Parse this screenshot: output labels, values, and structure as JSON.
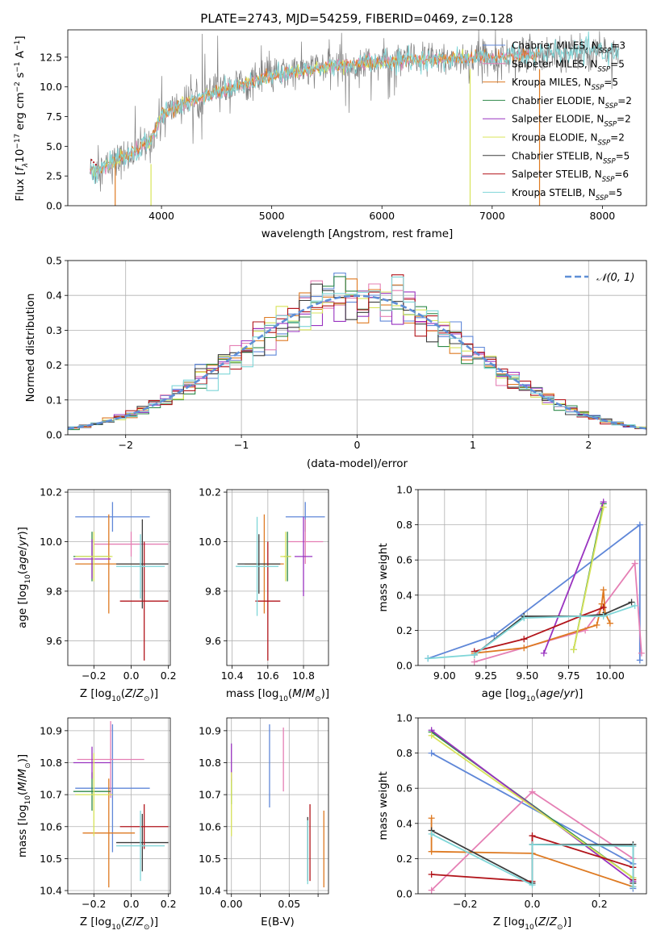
{
  "colors": {
    "Chabrier MILES": "#5f87d8",
    "Salpeter MILES": "#e57fb4",
    "Kroupa MILES": "#de7a22",
    "Chabrier ELODIE": "#2f8a4a",
    "Salpeter ELODIE": "#9933c0",
    "Kroupa ELODIE": "#d8e45a",
    "Chabrier STELIB": "#3c3c3c",
    "Salpeter STELIB": "#b2151b",
    "Kroupa STELIB": "#7fd6d8",
    "normal": "#5f8fd6",
    "spectrum_data": "#808080"
  },
  "models": [
    "Chabrier MILES",
    "Salpeter MILES",
    "Kroupa MILES",
    "Chabrier ELODIE",
    "Salpeter ELODIE",
    "Kroupa ELODIE",
    "Chabrier STELIB",
    "Salpeter STELIB",
    "Kroupa STELIB"
  ],
  "chart_data": [
    {
      "id": "spectrum",
      "type": "line",
      "title": "PLATE=2743, MJD=54259, FIBERID=0469, z=0.128",
      "xlabel": "wavelength [Angstrom, rest frame]",
      "ylabel": "Flux [fλ10⁻¹⁷ erg cm⁻² s⁻¹ A⁻¹]",
      "xlim": [
        3150,
        8400
      ],
      "ylim": [
        0,
        14.8
      ],
      "xticks": [
        4000,
        5000,
        6000,
        7000,
        8000
      ],
      "yticks": [
        0.0,
        2.5,
        5.0,
        7.5,
        10.0,
        12.5
      ],
      "ytick_labels": [
        "0.0",
        "2.5",
        "5.0",
        "7.5",
        "10.0",
        "12.5"
      ],
      "continuum": {
        "x": [
          3350,
          3500,
          3700,
          3900,
          4000,
          4200,
          4500,
          4800,
          5000,
          5300,
          5600,
          6000,
          6500,
          7000,
          7500,
          8000,
          8150
        ],
        "y": [
          2.9,
          3.3,
          4.2,
          5.4,
          7.6,
          8.6,
          9.6,
          10.4,
          10.9,
          11.4,
          11.8,
          12.1,
          12.3,
          12.5,
          12.8,
          13.0,
          12.9
        ]
      },
      "legend": [
        {
          "label": "Chabrier MILES, N",
          "sub": "SSP",
          "suffix": "=3"
        },
        {
          "label": "Salpeter MILES, N",
          "sub": "SSP",
          "suffix": "=5"
        },
        {
          "label": "Kroupa MILES, N",
          "sub": "SSP",
          "suffix": "=5"
        },
        {
          "label": "Chabrier ELODIE, N",
          "sub": "SSP",
          "suffix": "=2"
        },
        {
          "label": "Salpeter ELODIE, N",
          "sub": "SSP",
          "suffix": "=2"
        },
        {
          "label": "Kroupa ELODIE, N",
          "sub": "SSP",
          "suffix": "=2"
        },
        {
          "label": "Chabrier STELIB, N",
          "sub": "SSP",
          "suffix": "=5"
        },
        {
          "label": "Salpeter STELIB, N",
          "sub": "SSP",
          "suffix": "=6"
        },
        {
          "label": "Kroupa STELIB, N",
          "sub": "SSP",
          "suffix": "=5"
        }
      ]
    },
    {
      "id": "residuals",
      "type": "histogram",
      "xlabel": "(data-model)/error",
      "ylabel": "Normed distribution",
      "xlim": [
        -2.5,
        2.5
      ],
      "ylim": [
        0,
        0.5
      ],
      "xticks": [
        -2,
        -1,
        0,
        1,
        2
      ],
      "xtick_labels": [
        "−2",
        "−1",
        "0",
        "1",
        "2"
      ],
      "yticks": [
        0.0,
        0.1,
        0.2,
        0.3,
        0.4,
        0.5
      ],
      "ytick_labels": [
        "0.0",
        "0.1",
        "0.2",
        "0.3",
        "0.4",
        "0.5"
      ],
      "bin_edges_start": -2.5,
      "bin_width": 0.1,
      "legend": "𝒩(0, 1)"
    },
    {
      "id": "age_vs_Z",
      "type": "scatter",
      "xlabel": "Z [log10(Z/Z⊙)]",
      "ylabel": "age  [log10(age/yr)]",
      "xlim": [
        -0.34,
        0.21
      ],
      "ylim": [
        9.5,
        10.21
      ],
      "xticks": [
        -0.2,
        0.0,
        0.2
      ],
      "xtick_labels": [
        "−0.2",
        "0.0",
        "0.2"
      ],
      "yticks": [
        9.6,
        9.8,
        10.0,
        10.2
      ],
      "ytick_labels": [
        "9.6",
        "9.8",
        "10.0",
        "10.2"
      ],
      "points": [
        {
          "model": "Chabrier MILES",
          "x": -0.1,
          "xerr": 0.2,
          "y": 10.1,
          "yerr": 0.06
        },
        {
          "model": "Salpeter MILES",
          "x": 0.0,
          "xerr": 0.2,
          "y": 9.99,
          "yerr": 0.05
        },
        {
          "model": "Kroupa MILES",
          "x": -0.12,
          "xerr": 0.18,
          "y": 9.91,
          "yerr": 0.2
        },
        {
          "model": "Chabrier ELODIE",
          "x": -0.21,
          "xerr": 0.1,
          "y": 9.94,
          "yerr": 0.1
        },
        {
          "model": "Salpeter ELODIE",
          "x": -0.21,
          "xerr": 0.1,
          "y": 9.93,
          "yerr": 0.08
        },
        {
          "model": "Kroupa ELODIE",
          "x": -0.2,
          "xerr": 0.1,
          "y": 9.94,
          "yerr": 0.1
        },
        {
          "model": "Chabrier STELIB",
          "x": 0.06,
          "xerr": 0.14,
          "y": 9.91,
          "yerr": 0.18
        },
        {
          "model": "Salpeter STELIB",
          "x": 0.07,
          "xerr": 0.13,
          "y": 9.76,
          "yerr": 0.24
        },
        {
          "model": "Kroupa STELIB",
          "x": 0.05,
          "xerr": 0.13,
          "y": 9.9,
          "yerr": 0.13
        }
      ]
    },
    {
      "id": "age_vs_mass",
      "type": "scatter",
      "xlabel": "mass [log10(M/M⊙)]",
      "ylabel": "",
      "xlim": [
        10.37,
        10.94
      ],
      "ylim": [
        9.5,
        10.21
      ],
      "xticks": [
        10.4,
        10.6,
        10.8
      ],
      "xtick_labels": [
        "10.4",
        "10.6",
        "10.8"
      ],
      "yticks": [
        9.6,
        9.8,
        10.0,
        10.2
      ],
      "ytick_labels": [
        "9.6",
        "9.8",
        "10.0",
        "10.2"
      ],
      "points": [
        {
          "model": "Chabrier MILES",
          "x": 10.81,
          "xerr": 0.11,
          "y": 10.1,
          "yerr": 0.06
        },
        {
          "model": "Salpeter MILES",
          "x": 10.81,
          "xerr": 0.1,
          "y": 10.0,
          "yerr": 0.09
        },
        {
          "model": "Kroupa MILES",
          "x": 10.58,
          "xerr": 0.11,
          "y": 9.91,
          "yerr": 0.2
        },
        {
          "model": "Chabrier ELODIE",
          "x": 10.71,
          "xerr": 0.02,
          "y": 9.94,
          "yerr": 0.1
        },
        {
          "model": "Salpeter ELODIE",
          "x": 10.8,
          "xerr": 0.05,
          "y": 9.94,
          "yerr": 0.16
        },
        {
          "model": "Kroupa ELODIE",
          "x": 10.7,
          "xerr": 0.03,
          "y": 9.94,
          "yerr": 0.1
        },
        {
          "model": "Chabrier STELIB",
          "x": 10.55,
          "xerr": 0.12,
          "y": 9.91,
          "yerr": 0.12
        },
        {
          "model": "Salpeter STELIB",
          "x": 10.6,
          "xerr": 0.07,
          "y": 9.76,
          "yerr": 0.24
        },
        {
          "model": "Kroupa STELIB",
          "x": 10.54,
          "xerr": 0.12,
          "y": 9.9,
          "yerr": 0.2
        }
      ]
    },
    {
      "id": "weight_vs_age",
      "type": "line",
      "xlabel": "age  [log10(age/yr)]",
      "ylabel": "mass weight",
      "xlim": [
        8.84,
        10.22
      ],
      "ylim": [
        0,
        1.0
      ],
      "xticks": [
        9.0,
        9.25,
        9.5,
        9.75,
        10.0
      ],
      "xtick_labels": [
        "9.00",
        "9.25",
        "9.50",
        "9.75",
        "10.00"
      ],
      "yticks": [
        0.0,
        0.2,
        0.4,
        0.6,
        0.8,
        1.0
      ],
      "ytick_labels": [
        "0.0",
        "0.2",
        "0.4",
        "0.6",
        "0.8",
        "1.0"
      ],
      "series": [
        {
          "model": "Chabrier MILES",
          "x": [
            8.9,
            9.3,
            10.18,
            10.18
          ],
          "y": [
            0.04,
            0.17,
            0.8,
            0.03
          ]
        },
        {
          "model": "Salpeter MILES",
          "x": [
            9.18,
            9.85,
            10.15,
            10.19
          ],
          "y": [
            0.02,
            0.2,
            0.58,
            0.07
          ]
        },
        {
          "model": "Kroupa MILES",
          "x": [
            9.18,
            9.48,
            9.92,
            9.95,
            9.96,
            9.97,
            10.0
          ],
          "y": [
            0.07,
            0.1,
            0.23,
            0.35,
            0.43,
            0.3,
            0.24
          ]
        },
        {
          "model": "Chabrier ELODIE",
          "x": [
            9.78,
            9.96
          ],
          "y": [
            0.09,
            0.92
          ]
        },
        {
          "model": "Salpeter ELODIE",
          "x": [
            9.6,
            9.96
          ],
          "y": [
            0.07,
            0.93
          ]
        },
        {
          "model": "Kroupa ELODIE",
          "x": [
            9.78,
            9.96
          ],
          "y": [
            0.09,
            0.9
          ]
        },
        {
          "model": "Chabrier STELIB",
          "x": [
            9.18,
            9.48,
            9.82,
            9.96,
            10.13
          ],
          "y": [
            0.06,
            0.28,
            0.28,
            0.29,
            0.36
          ]
        },
        {
          "model": "Salpeter STELIB",
          "x": [
            9.18,
            9.48,
            9.82,
            9.96
          ],
          "y": [
            0.08,
            0.15,
            0.28,
            0.33
          ]
        },
        {
          "model": "Kroupa STELIB",
          "x": [
            8.9,
            9.18,
            9.48,
            9.82,
            9.96,
            10.15
          ],
          "y": [
            0.04,
            0.06,
            0.27,
            0.28,
            0.28,
            0.34
          ]
        }
      ]
    },
    {
      "id": "mass_vs_Z",
      "type": "scatter",
      "xlabel": "Z [log10(Z/Z⊙)]",
      "ylabel": "mass [log10(M/M⊙)]",
      "xlim": [
        -0.34,
        0.21
      ],
      "ylim": [
        10.39,
        10.94
      ],
      "xticks": [
        -0.2,
        0.0,
        0.2
      ],
      "xtick_labels": [
        "−0.2",
        "0.0",
        "0.2"
      ],
      "yticks": [
        10.4,
        10.5,
        10.6,
        10.7,
        10.8,
        10.9
      ],
      "ytick_labels": [
        "10.4",
        "10.5",
        "10.6",
        "10.7",
        "10.8",
        "10.9"
      ],
      "points": [
        {
          "model": "Chabrier MILES",
          "x": -0.1,
          "xerr": 0.2,
          "y": 10.72,
          "yerr": 0.2
        },
        {
          "model": "Salpeter MILES",
          "x": -0.11,
          "xerr": 0.18,
          "y": 10.81,
          "yerr": 0.12
        },
        {
          "model": "Kroupa MILES",
          "x": -0.12,
          "xerr": 0.14,
          "y": 10.58,
          "yerr": 0.17
        },
        {
          "model": "Chabrier ELODIE",
          "x": -0.21,
          "xerr": 0.1,
          "y": 10.71,
          "yerr": 0.06
        },
        {
          "model": "Salpeter ELODIE",
          "x": -0.21,
          "xerr": 0.1,
          "y": 10.8,
          "yerr": 0.05
        },
        {
          "model": "Kroupa ELODIE",
          "x": -0.2,
          "xerr": 0.1,
          "y": 10.7,
          "yerr": 0.13
        },
        {
          "model": "Chabrier STELIB",
          "x": 0.06,
          "xerr": 0.14,
          "y": 10.55,
          "yerr": 0.09
        },
        {
          "model": "Salpeter STELIB",
          "x": 0.07,
          "xerr": 0.13,
          "y": 10.6,
          "yerr": 0.07
        },
        {
          "model": "Kroupa STELIB",
          "x": 0.05,
          "xerr": 0.13,
          "y": 10.54,
          "yerr": 0.11
        }
      ]
    },
    {
      "id": "mass_vs_ebv",
      "type": "scatter",
      "xlabel": "E(B-V)",
      "ylabel": "",
      "xlim": [
        -0.004,
        0.084
      ],
      "ylim": [
        10.39,
        10.94
      ],
      "xticks": [
        0.0,
        0.025,
        0.05,
        0.075
      ],
      "xtick_labels": [
        "0.00",
        "",
        "0.05",
        ""
      ],
      "yticks": [
        10.4,
        10.5,
        10.6,
        10.7,
        10.8,
        10.9
      ],
      "ytick_labels": [
        "10.4",
        "10.5",
        "10.6",
        "10.7",
        "10.8",
        "10.9"
      ],
      "points": [
        {
          "model": "Chabrier MILES",
          "x": 0.033,
          "y": 10.79,
          "yerr": 0.13
        },
        {
          "model": "Salpeter MILES",
          "x": 0.045,
          "y": 10.81,
          "yerr": 0.1
        },
        {
          "model": "Kroupa MILES",
          "x": 0.08,
          "y": 10.53,
          "yerr": 0.12
        },
        {
          "model": "Chabrier ELODIE",
          "x": 0.0,
          "y": 10.71,
          "yerr": 0.04
        },
        {
          "model": "Salpeter ELODIE",
          "x": 0.0,
          "y": 10.8,
          "yerr": 0.06
        },
        {
          "model": "Kroupa ELODIE",
          "x": 0.0,
          "y": 10.67,
          "yerr": 0.1
        },
        {
          "model": "Chabrier STELIB",
          "x": 0.066,
          "y": 10.53,
          "yerr": 0.1
        },
        {
          "model": "Salpeter STELIB",
          "x": 0.068,
          "y": 10.55,
          "yerr": 0.12
        },
        {
          "model": "Kroupa STELIB",
          "x": 0.066,
          "y": 10.52,
          "yerr": 0.1
        }
      ]
    },
    {
      "id": "weight_vs_Z",
      "type": "line",
      "xlabel": "Z [log10(Z/Z⊙)]",
      "ylabel": "mass weight",
      "xlim": [
        -0.34,
        0.34
      ],
      "ylim": [
        0,
        1.0
      ],
      "xticks": [
        -0.2,
        0.0,
        0.2
      ],
      "xtick_labels": [
        "−0.2",
        "0.0",
        "0.2"
      ],
      "yticks": [
        0.0,
        0.2,
        0.4,
        0.6,
        0.8,
        1.0
      ],
      "ytick_labels": [
        "0.0",
        "0.2",
        "0.4",
        "0.6",
        "0.8",
        "1.0"
      ],
      "series": [
        {
          "model": "Chabrier MILES",
          "x": [
            -0.3,
            0.3,
            0.3
          ],
          "y": [
            0.8,
            0.17,
            0.03
          ]
        },
        {
          "model": "Salpeter MILES",
          "x": [
            -0.3,
            0.0,
            0.3,
            0.3
          ],
          "y": [
            0.02,
            0.58,
            0.2,
            0.07
          ]
        },
        {
          "model": "Kroupa MILES",
          "x": [
            -0.3,
            -0.3,
            0.0,
            0.3
          ],
          "y": [
            0.43,
            0.24,
            0.23,
            0.04
          ]
        },
        {
          "model": "Chabrier ELODIE",
          "x": [
            -0.3,
            0.3
          ],
          "y": [
            0.92,
            0.09
          ]
        },
        {
          "model": "Salpeter ELODIE",
          "x": [
            -0.3,
            0.3
          ],
          "y": [
            0.93,
            0.07
          ]
        },
        {
          "model": "Kroupa ELODIE",
          "x": [
            -0.3,
            0.3
          ],
          "y": [
            0.9,
            0.09
          ]
        },
        {
          "model": "Chabrier STELIB",
          "x": [
            -0.3,
            0.0,
            0.0,
            0.3,
            0.3
          ],
          "y": [
            0.36,
            0.06,
            0.28,
            0.28,
            0.06
          ]
        },
        {
          "model": "Salpeter STELIB",
          "x": [
            -0.3,
            0.0,
            0.0,
            0.3,
            0.3
          ],
          "y": [
            0.11,
            0.07,
            0.33,
            0.15,
            0.08
          ]
        },
        {
          "model": "Kroupa STELIB",
          "x": [
            -0.3,
            0.0,
            0.0,
            0.3,
            0.3
          ],
          "y": [
            0.34,
            0.05,
            0.28,
            0.27,
            0.04
          ]
        }
      ]
    }
  ]
}
